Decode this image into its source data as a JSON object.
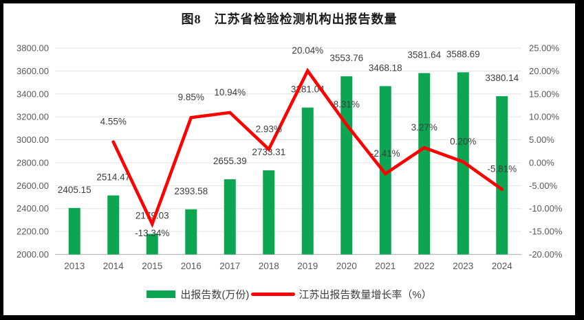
{
  "chart_data": {
    "type": "combo-bar-line",
    "title": "图8　江苏省检验检测机构出报告数量",
    "categories": [
      "2013",
      "2014",
      "2015",
      "2016",
      "2017",
      "2018",
      "2019",
      "2020",
      "2021",
      "2022",
      "2023",
      "2024"
    ],
    "series": [
      {
        "name": "出报告数(万份)",
        "type": "bar",
        "axis": "left",
        "color": "#0ca551",
        "values": [
          2405.15,
          2514.47,
          2179.03,
          2393.58,
          2655.39,
          2733.31,
          3281.04,
          3553.76,
          3468.18,
          3581.64,
          3588.69,
          3380.14
        ],
        "labels": [
          "2405.15",
          "2514.47",
          "2179.03",
          "2393.58",
          "2655.39",
          "2733.31",
          "3281.04",
          "3553.76",
          "3468.18",
          "3581.64",
          "3588.69",
          "3380.14"
        ]
      },
      {
        "name": "江苏出报告数量增长率（%）",
        "type": "line",
        "axis": "right",
        "color": "#fe0000",
        "values": [
          null,
          4.55,
          -13.34,
          9.85,
          10.94,
          2.93,
          20.04,
          8.31,
          -2.41,
          3.27,
          0.2,
          -5.81
        ],
        "labels": [
          null,
          "4.55%",
          "-13.34%",
          "9.85%",
          "10.94%",
          "2.93%",
          "20.04%",
          "8.31%",
          "-2.41%",
          "3.27%",
          "0.20%",
          "-5.81%"
        ]
      }
    ],
    "left_axis": {
      "min": 2000,
      "max": 3800,
      "step": 200,
      "labels": [
        "2000.00",
        "2200.00",
        "2400.00",
        "2600.00",
        "2800.00",
        "3000.00",
        "3200.00",
        "3400.00",
        "3600.00",
        "3800.00"
      ]
    },
    "right_axis": {
      "min": -20,
      "max": 25,
      "step": 5,
      "labels": [
        "-20.00%",
        "-15.00%",
        "-10.00%",
        "-5.00%",
        "0.00%",
        "5.00%",
        "10.00%",
        "15.00%",
        "20.00%",
        "25.00%"
      ]
    },
    "layout": {
      "grid": true,
      "legend_position": "bottom",
      "line_label_side": [
        null,
        "above",
        "below",
        "above",
        "above",
        "above",
        "above",
        "above",
        "above",
        "above",
        "above",
        "above"
      ]
    }
  }
}
